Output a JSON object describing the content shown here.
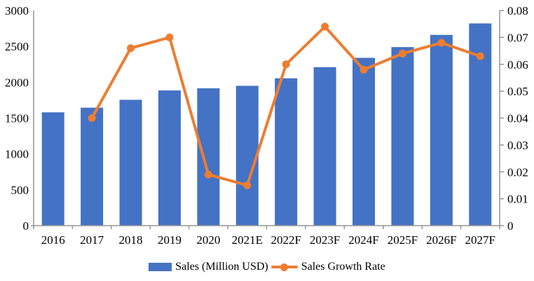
{
  "chart_data": {
    "type": "combo",
    "categories": [
      "2016",
      "2017",
      "2018",
      "2019",
      "2020",
      "2021E",
      "2022F",
      "2023F",
      "2024F",
      "2025F",
      "2026F",
      "2027F"
    ],
    "series": [
      {
        "name": "Sales (Million USD)",
        "type": "bar",
        "axis": "left",
        "color": "#4472C4",
        "values": [
          1580,
          1645,
          1755,
          1885,
          1915,
          1950,
          2055,
          2210,
          2340,
          2490,
          2660,
          2820
        ]
      },
      {
        "name": "Sales Growth Rate",
        "type": "line",
        "axis": "right",
        "color": "#ED7D31",
        "values": [
          null,
          0.04,
          0.066,
          0.07,
          0.019,
          0.015,
          0.06,
          0.074,
          0.058,
          0.064,
          0.068,
          0.063
        ]
      }
    ],
    "left_axis": {
      "min": 0,
      "max": 3000,
      "step": 500,
      "ticks": [
        "0",
        "500",
        "1000",
        "1500",
        "2000",
        "2500",
        "3000"
      ]
    },
    "right_axis": {
      "min": 0,
      "max": 0.08,
      "step": 0.01,
      "ticks": [
        "0",
        "0.01",
        "0.02",
        "0.03",
        "0.04",
        "0.05",
        "0.06",
        "0.07",
        "0.08"
      ]
    },
    "grid": false,
    "legend_position": "bottom",
    "colors": {
      "bar": "#4472C4",
      "line": "#ED7D31",
      "axis": "#969696",
      "text": "#000000",
      "background": "#FFFFFF"
    }
  }
}
